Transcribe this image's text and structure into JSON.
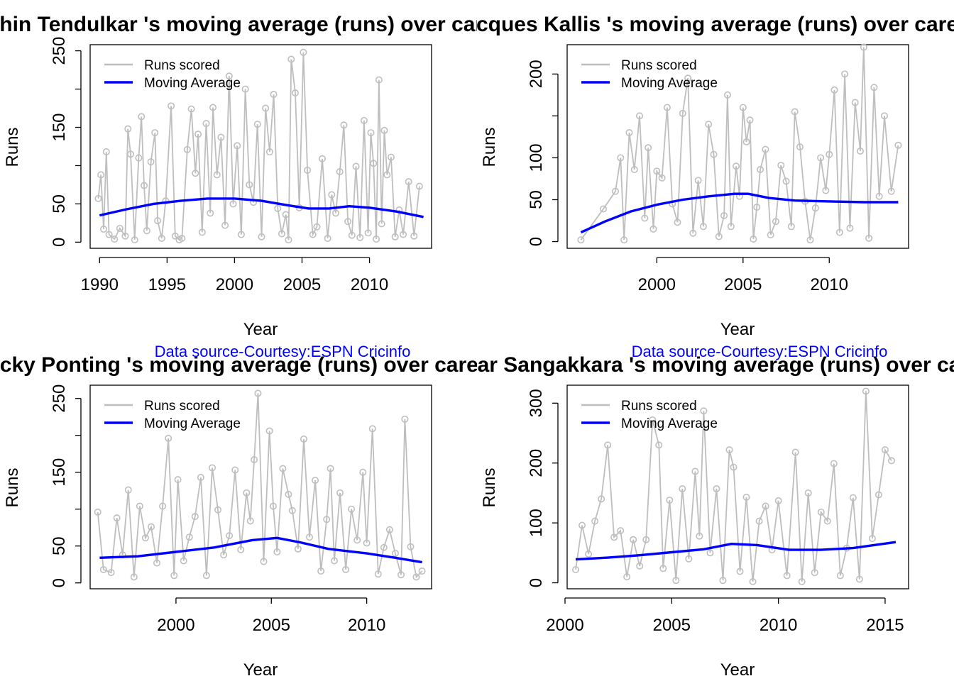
{
  "colors": {
    "runs": "#bebebe",
    "moving_avg": "#0000ff",
    "source": "#0000ff",
    "axis": "#000000"
  },
  "chart_data": [
    {
      "type": "line",
      "title": "Sachin Tendulkar 's moving average (runs) over career",
      "xlabel": "Year",
      "ylabel": "Runs",
      "xlim": [
        1989.3,
        2014.6
      ],
      "ylim": [
        -8,
        258
      ],
      "xticks": [
        1990,
        1995,
        2000,
        2005,
        2010
      ],
      "yticks": [
        0,
        50,
        100,
        150,
        200,
        250
      ],
      "ytick_labels": [
        "0",
        "50",
        "",
        "150",
        "",
        "250"
      ],
      "legend": [
        "Runs scored",
        "Moving Average"
      ],
      "legend_position": "top-left",
      "series": [
        {
          "name": "Runs scored",
          "type": "runs",
          "x": [
            1989.9,
            1990.1,
            1990.3,
            1990.5,
            1990.7,
            1991.1,
            1991.5,
            1991.9,
            1992.1,
            1992.3,
            1992.6,
            1992.9,
            1993.1,
            1993.3,
            1993.5,
            1993.8,
            1994.1,
            1994.3,
            1994.6,
            1994.9,
            1995.3,
            1995.6,
            1995.9,
            1996.1,
            1996.5,
            1996.8,
            1997.1,
            1997.3,
            1997.6,
            1997.9,
            1998.2,
            1998.4,
            1998.7,
            1999.0,
            1999.3,
            1999.6,
            1999.9,
            2000.2,
            2000.5,
            2000.8,
            2001.1,
            2001.4,
            2001.7,
            2002.0,
            2002.3,
            2002.6,
            2002.9,
            2003.2,
            2003.5,
            2003.8,
            2004.0,
            2004.2,
            2004.5,
            2004.8,
            2005.1,
            2005.4,
            2005.8,
            2006.1,
            2006.5,
            2006.9,
            2007.2,
            2007.5,
            2007.8,
            2008.1,
            2008.4,
            2008.7,
            2009.0,
            2009.3,
            2009.6,
            2009.9,
            2010.1,
            2010.3,
            2010.5,
            2010.7,
            2010.9,
            2011.1,
            2011.3,
            2011.6,
            2011.9,
            2012.2,
            2012.5,
            2012.9,
            2013.3,
            2013.7
          ],
          "y": [
            57,
            88,
            17,
            118,
            10,
            4,
            18,
            8,
            148,
            115,
            3,
            110,
            164,
            74,
            15,
            105,
            143,
            28,
            5,
            54,
            178,
            8,
            3,
            5,
            121,
            174,
            90,
            141,
            13,
            155,
            38,
            176,
            88,
            137,
            22,
            217,
            50,
            126,
            10,
            200,
            75,
            52,
            154,
            7,
            175,
            118,
            193,
            44,
            11,
            36,
            3,
            239,
            195,
            45,
            248,
            94,
            10,
            20,
            109,
            5,
            62,
            38,
            92,
            153,
            27,
            9,
            99,
            6,
            159,
            12,
            143,
            103,
            4,
            212,
            24,
            146,
            88,
            111,
            7,
            42,
            10,
            79,
            8,
            73
          ]
        },
        {
          "name": "Moving Average",
          "type": "moving_avg",
          "x": [
            1990,
            1992,
            1994,
            1996,
            1998,
            2000,
            2002,
            2004,
            2005.5,
            2007,
            2008.5,
            2010,
            2012,
            2014
          ],
          "y": [
            35,
            43,
            50,
            54,
            57,
            57,
            54,
            48,
            44,
            44,
            47,
            45,
            40,
            33
          ]
        }
      ]
    },
    {
      "type": "line",
      "title": "Jacques Kallis 's moving average (runs) over career",
      "xlabel": "Year",
      "ylabel": "Runs",
      "xlim": [
        1994.8,
        2014.6
      ],
      "ylim": [
        -8,
        235
      ],
      "xticks": [
        2000,
        2005,
        2010
      ],
      "yticks": [
        0,
        50,
        100,
        150,
        200
      ],
      "ytick_labels": [
        "0",
        "50",
        "100",
        "",
        "200"
      ],
      "legend": [
        "Runs scored",
        "Moving Average"
      ],
      "legend_position": "top-left",
      "series": [
        {
          "name": "Runs scored",
          "type": "runs",
          "x": [
            1995.6,
            1996.9,
            1997.6,
            1997.9,
            1998.1,
            1998.4,
            1998.7,
            1999.0,
            1999.3,
            1999.5,
            1999.8,
            2000.0,
            2000.3,
            2000.6,
            2000.9,
            2001.2,
            2001.5,
            2001.8,
            2002.1,
            2002.4,
            2002.7,
            2003.0,
            2003.3,
            2003.6,
            2003.9,
            2004.1,
            2004.3,
            2004.6,
            2004.8,
            2005.0,
            2005.2,
            2005.4,
            2005.6,
            2005.8,
            2006.0,
            2006.3,
            2006.6,
            2006.9,
            2007.2,
            2007.5,
            2007.8,
            2008.0,
            2008.3,
            2008.6,
            2008.9,
            2009.2,
            2009.5,
            2009.8,
            2010.0,
            2010.3,
            2010.6,
            2010.9,
            2011.2,
            2011.5,
            2011.8,
            2012.0,
            2012.3,
            2012.6,
            2012.9,
            2013.2,
            2013.6,
            2014.0
          ],
          "y": [
            2,
            39,
            60,
            100,
            2,
            130,
            86,
            150,
            28,
            112,
            15,
            84,
            76,
            160,
            45,
            23,
            153,
            195,
            10,
            73,
            18,
            140,
            104,
            6,
            31,
            175,
            18,
            90,
            54,
            160,
            119,
            145,
            3,
            41,
            86,
            110,
            8,
            24,
            91,
            72,
            18,
            155,
            113,
            48,
            2,
            40,
            100,
            61,
            104,
            181,
            11,
            200,
            16,
            166,
            108,
            232,
            4,
            184,
            54,
            150,
            60,
            115
          ]
        },
        {
          "name": "Moving Average",
          "type": "moving_avg",
          "x": [
            1995.6,
            1997,
            1998.5,
            2000,
            2001.5,
            2003,
            2004.5,
            2005.3,
            2006.5,
            2008,
            2010,
            2012,
            2014
          ],
          "y": [
            11,
            24,
            36,
            44,
            50,
            54,
            57,
            57,
            52,
            49,
            48,
            47,
            47
          ]
        }
      ]
    },
    {
      "type": "line",
      "title": "Ricky Ponting 's moving average (runs) over career",
      "xlabel": "Year",
      "ylabel": "Runs",
      "source_note": "Data source-Courtesy:ESPN Cricinfo",
      "xlim": [
        1995.5,
        2013.4
      ],
      "ylim": [
        -8,
        268
      ],
      "xticks": [
        2000,
        2005,
        2010
      ],
      "yticks": [
        0,
        50,
        100,
        150,
        200,
        250
      ],
      "ytick_labels": [
        "0",
        "50",
        "",
        "150",
        "",
        "250"
      ],
      "legend": [
        "Runs scored",
        "Moving Average"
      ],
      "legend_position": "top-left",
      "series": [
        {
          "name": "Runs scored",
          "type": "runs",
          "x": [
            1995.9,
            1996.2,
            1996.6,
            1996.9,
            1997.2,
            1997.5,
            1997.8,
            1998.1,
            1998.4,
            1998.7,
            1999.0,
            1999.3,
            1999.6,
            1999.9,
            2000.1,
            2000.4,
            2000.7,
            2001.0,
            2001.3,
            2001.6,
            2001.9,
            2002.2,
            2002.5,
            2002.8,
            2003.1,
            2003.4,
            2003.7,
            2003.9,
            2004.1,
            2004.3,
            2004.6,
            2004.9,
            2005.1,
            2005.3,
            2005.6,
            2005.9,
            2006.1,
            2006.4,
            2006.7,
            2007.0,
            2007.3,
            2007.6,
            2007.9,
            2008.1,
            2008.3,
            2008.6,
            2008.9,
            2009.2,
            2009.5,
            2009.8,
            2010.0,
            2010.3,
            2010.6,
            2010.9,
            2011.2,
            2011.5,
            2011.8,
            2012.0,
            2012.3,
            2012.6,
            2012.9
          ],
          "y": [
            96,
            18,
            14,
            88,
            38,
            126,
            8,
            104,
            61,
            76,
            27,
            104,
            196,
            10,
            140,
            30,
            62,
            90,
            143,
            10,
            156,
            99,
            38,
            64,
            153,
            45,
            122,
            84,
            167,
            257,
            29,
            206,
            104,
            42,
            155,
            120,
            98,
            46,
            195,
            62,
            139,
            16,
            86,
            155,
            30,
            122,
            18,
            100,
            58,
            150,
            54,
            209,
            12,
            48,
            72,
            40,
            11,
            222,
            49,
            8,
            16
          ]
        },
        {
          "name": "Moving Average",
          "type": "moving_avg",
          "x": [
            1996,
            1998,
            2000,
            2002,
            2004,
            2005.3,
            2006.5,
            2008,
            2010,
            2011.5,
            2012.9
          ],
          "y": [
            34,
            36,
            42,
            48,
            58,
            61,
            55,
            46,
            40,
            34,
            28
          ]
        }
      ]
    },
    {
      "type": "line",
      "title": "Kumar Sangakkara 's moving average (runs) over career",
      "xlabel": "Year",
      "ylabel": "Runs",
      "source_note": "Data source-Courtesy:ESPN Cricinfo",
      "xlim": [
        2000.1,
        2016.1
      ],
      "ylim": [
        -10,
        330
      ],
      "xticks": [
        2000,
        2005,
        2010,
        2015
      ],
      "yticks": [
        0,
        100,
        200,
        300
      ],
      "ytick_labels": [
        "0",
        "100",
        "200",
        "300"
      ],
      "legend": [
        "Runs scored",
        "Moving Average"
      ],
      "legend_position": "top-left",
      "series": [
        {
          "name": "Runs scored",
          "type": "runs",
          "x": [
            2000.5,
            2000.8,
            2001.1,
            2001.4,
            2001.7,
            2002.0,
            2002.3,
            2002.6,
            2002.9,
            2003.2,
            2003.5,
            2003.8,
            2004.1,
            2004.4,
            2004.6,
            2004.9,
            2005.2,
            2005.5,
            2005.8,
            2006.1,
            2006.3,
            2006.5,
            2006.8,
            2007.1,
            2007.4,
            2007.7,
            2007.9,
            2008.2,
            2008.5,
            2008.8,
            2009.1,
            2009.4,
            2009.7,
            2010.0,
            2010.4,
            2010.8,
            2011.1,
            2011.4,
            2011.7,
            2012.0,
            2012.3,
            2012.6,
            2012.9,
            2013.2,
            2013.5,
            2013.8,
            2014.1,
            2014.4,
            2014.7,
            2015.0,
            2015.3
          ],
          "y": [
            22,
            96,
            48,
            103,
            140,
            230,
            76,
            87,
            10,
            72,
            28,
            72,
            272,
            230,
            24,
            138,
            4,
            157,
            40,
            186,
            78,
            287,
            50,
            157,
            4,
            222,
            193,
            19,
            143,
            2,
            103,
            128,
            55,
            137,
            12,
            218,
            2,
            150,
            17,
            118,
            103,
            199,
            12,
            58,
            142,
            6,
            320,
            74,
            147,
            222,
            204
          ]
        },
        {
          "name": "Moving Average",
          "type": "moving_avg",
          "x": [
            2000.5,
            2002,
            2003.5,
            2005,
            2006.5,
            2007.8,
            2009,
            2010.5,
            2012,
            2013.5,
            2015.5
          ],
          "y": [
            39,
            42,
            46,
            51,
            56,
            65,
            63,
            55,
            55,
            58,
            68
          ]
        }
      ]
    }
  ]
}
